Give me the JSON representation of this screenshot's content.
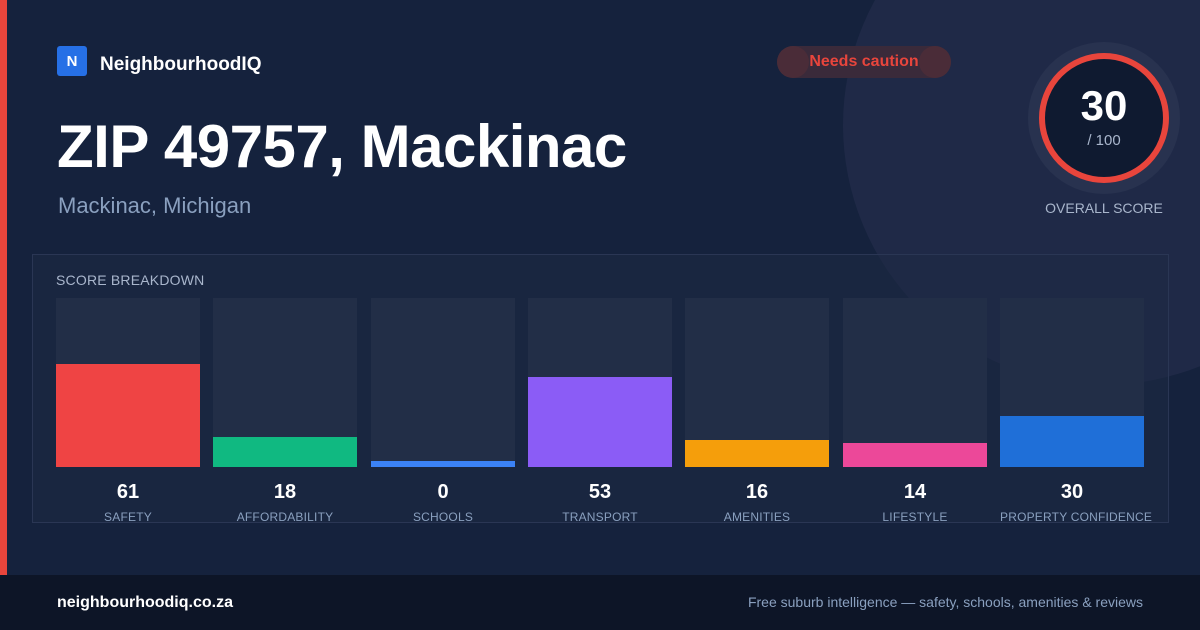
{
  "brand": {
    "logo_letter": "N",
    "name": "NeighbourhoodIQ"
  },
  "badge": {
    "label": "Needs caution"
  },
  "title": "ZIP 49757, Mackinac",
  "subtitle": "Mackinac, Michigan",
  "overall": {
    "value": "30",
    "max": "/ 100",
    "label": "OVERALL SCORE"
  },
  "breakdown": {
    "title": "SCORE BREAKDOWN",
    "items": [
      {
        "value": "61",
        "label": "SAFETY",
        "color": "#ef4444",
        "fill_fraction": 0.61
      },
      {
        "value": "18",
        "label": "AFFORDABILITY",
        "color": "#10b981",
        "fill_fraction": 0.18
      },
      {
        "value": "0",
        "label": "SCHOOLS",
        "color": "#3b82f6",
        "fill_fraction": 0.0
      },
      {
        "value": "53",
        "label": "TRANSPORT",
        "color": "#8b5cf6",
        "fill_fraction": 0.53
      },
      {
        "value": "16",
        "label": "AMENITIES",
        "color": "#f59e0b",
        "fill_fraction": 0.16
      },
      {
        "value": "14",
        "label": "LIFESTYLE",
        "color": "#ec4899",
        "fill_fraction": 0.14
      },
      {
        "value": "30",
        "label": "PROPERTY CONFIDENCE",
        "color": "#1f6fd8",
        "fill_fraction": 0.3
      }
    ]
  },
  "footer": {
    "domain": "neighbourhoodiq.co.za",
    "tagline": "Free suburb intelligence — safety, schools, amenities & reviews"
  }
}
